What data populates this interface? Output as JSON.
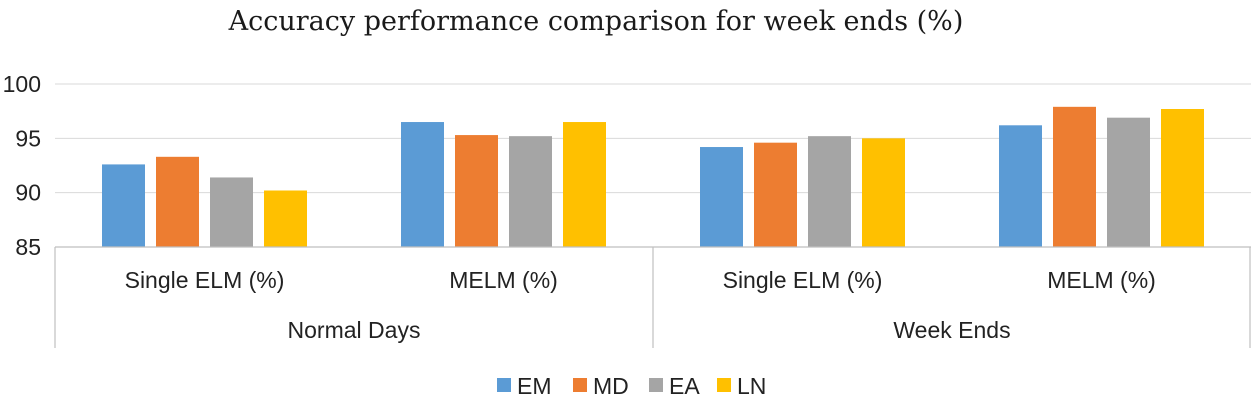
{
  "colors": {
    "EM": "#5b9bd5",
    "MD": "#ed7d31",
    "EA": "#a5a5a5",
    "LN": "#ffc000"
  },
  "chart_data": {
    "type": "bar",
    "title": "Accuracy performance comparison for week ends (%)",
    "xlabel": "",
    "ylabel": "",
    "ylim": [
      85,
      100
    ],
    "yticks": [
      85,
      90,
      95,
      100
    ],
    "grid": true,
    "legend_position": "bottom-center",
    "groups": [
      {
        "label": "Normal Days",
        "categories": [
          "Single ELM (%)",
          "MELM (%)"
        ]
      },
      {
        "label": "Week Ends",
        "categories": [
          "Single ELM (%)",
          "MELM (%)"
        ]
      }
    ],
    "categories": [
      "Single ELM (%)",
      "MELM (%)",
      "Single ELM (%)",
      "MELM (%)"
    ],
    "series": [
      {
        "name": "EM",
        "values": [
          92.6,
          96.5,
          94.2,
          96.2
        ]
      },
      {
        "name": "MD",
        "values": [
          93.3,
          95.3,
          94.6,
          97.9
        ]
      },
      {
        "name": "EA",
        "values": [
          91.4,
          95.2,
          95.2,
          96.9
        ]
      },
      {
        "name": "LN",
        "values": [
          90.2,
          96.5,
          95.0,
          97.7
        ]
      }
    ]
  }
}
